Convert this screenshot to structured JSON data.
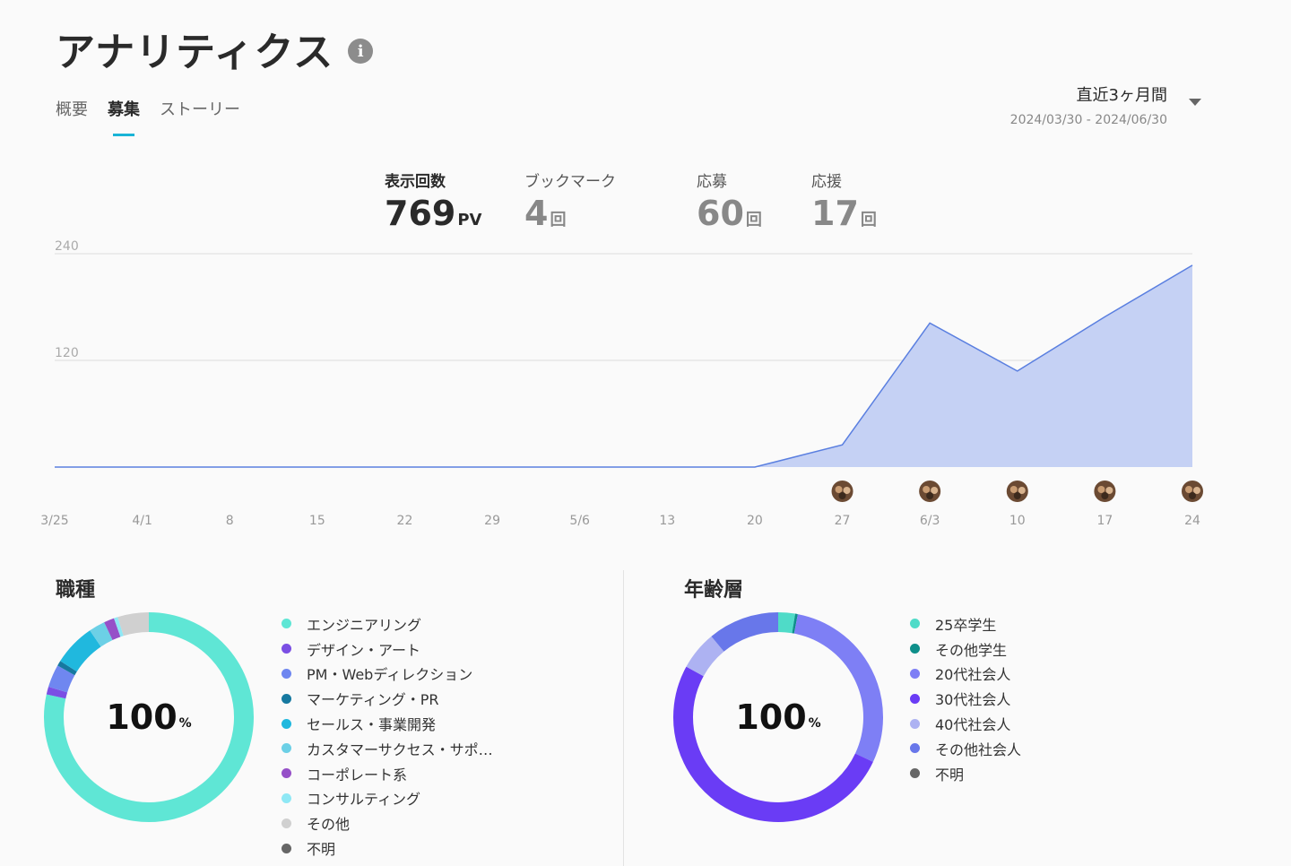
{
  "header": {
    "title": "アナリティクス",
    "info_icon": "info-icon"
  },
  "tabs": [
    {
      "label": "概要",
      "active": false
    },
    {
      "label": "募集",
      "active": true
    },
    {
      "label": "ストーリー",
      "active": false
    }
  ],
  "period": {
    "label": "直近3ヶ月間",
    "range": "2024/03/30 - 2024/06/30"
  },
  "stats": [
    {
      "label": "表示回数",
      "value": "769",
      "unit": "PV"
    },
    {
      "label": "ブックマーク",
      "value": "4",
      "unit": "回"
    },
    {
      "label": "応募",
      "value": "60",
      "unit": "回"
    },
    {
      "label": "応援",
      "value": "17",
      "unit": "回"
    }
  ],
  "chart_data": {
    "type": "area",
    "x": [
      "3/25",
      "4/1",
      "8",
      "15",
      "22",
      "29",
      "5/6",
      "13",
      "20",
      "27",
      "6/3",
      "10",
      "17",
      "24"
    ],
    "series": [
      {
        "values": [
          0,
          0,
          0,
          0,
          0,
          0,
          0,
          0,
          0,
          25,
          162,
          108,
          169,
          227
        ]
      }
    ],
    "y_ticks": [
      120,
      240
    ],
    "ylim": [
      0,
      240
    ],
    "grid": true,
    "color": "#5a7fe0",
    "fill": "#c5d1f4",
    "avatar_markers_at": [
      "27",
      "6/3",
      "10",
      "17",
      "24"
    ]
  },
  "job_types": {
    "title": "職種",
    "center_value": "100",
    "center_unit": "%",
    "items": [
      {
        "label": "エンジニアリング",
        "color": "#5fe6d5",
        "value": 78.5
      },
      {
        "label": "デザイン・アート",
        "color": "#7b4fe4",
        "value": 1.2
      },
      {
        "label": "PM・Webディレクション",
        "color": "#6f87f0",
        "value": 3.5
      },
      {
        "label": "マーケティング・PR",
        "color": "#1679a0",
        "value": 0.8
      },
      {
        "label": "セールス・事業開発",
        "color": "#20b8de",
        "value": 6.5
      },
      {
        "label": "カスタマーサクセス・サポ…",
        "color": "#6cd0e6",
        "value": 2.5
      },
      {
        "label": "コーポレート系",
        "color": "#9650c8",
        "value": 1.6
      },
      {
        "label": "コンサルティング",
        "color": "#8fe8f5",
        "value": 0.6
      },
      {
        "label": "その他",
        "color": "#d0d0d0",
        "value": 4.8
      },
      {
        "label": "不明",
        "color": "#666666",
        "value": 0
      }
    ]
  },
  "age_groups": {
    "title": "年齢層",
    "center_value": "100",
    "center_unit": "%",
    "items": [
      {
        "label": "25卒学生",
        "color": "#4fdbc8",
        "value": 2.6
      },
      {
        "label": "その他学生",
        "color": "#0e8f8a",
        "value": 0.4
      },
      {
        "label": "20代社会人",
        "color": "#7e7ff5",
        "value": 29
      },
      {
        "label": "30代社会人",
        "color": "#6a3cf5",
        "value": 51
      },
      {
        "label": "40代社会人",
        "color": "#adb2f2",
        "value": 6
      },
      {
        "label": "その他社会人",
        "color": "#6877ea",
        "value": 11
      },
      {
        "label": "不明",
        "color": "#666666",
        "value": 0
      }
    ]
  }
}
